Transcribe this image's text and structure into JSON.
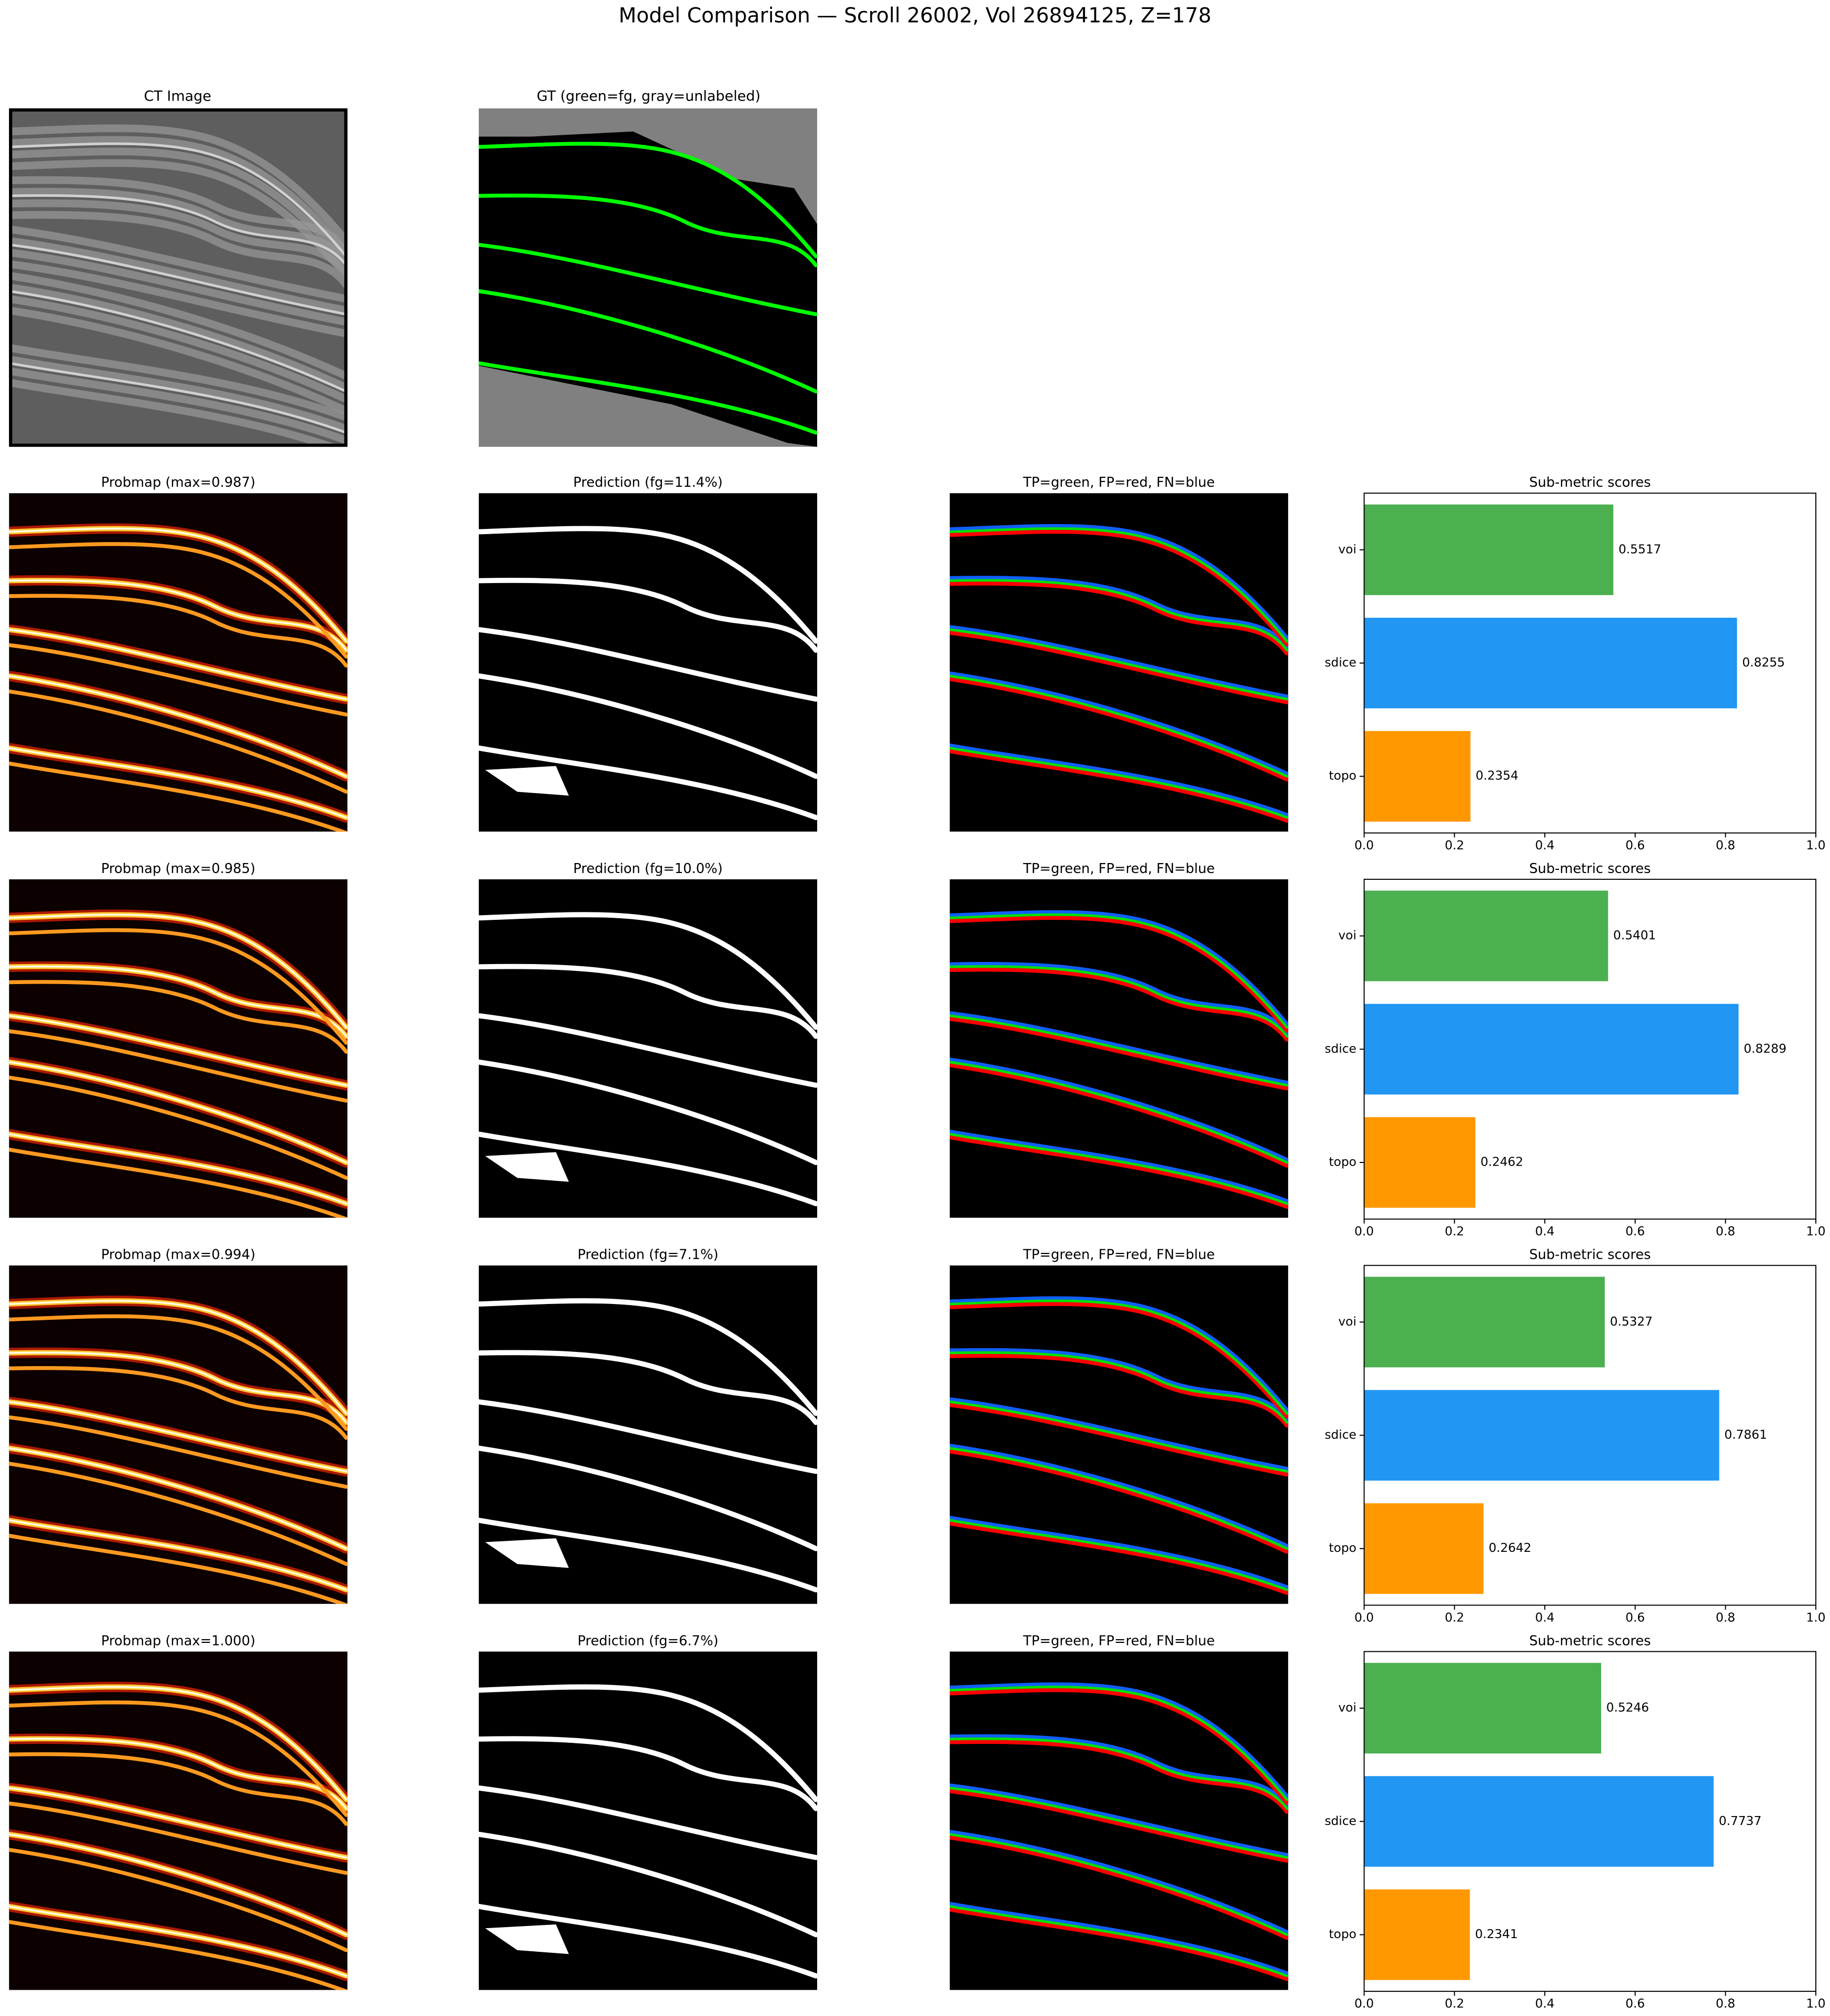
{
  "figure_title": "Model Comparison — Scroll 26002, Vol 26894125, Z=178",
  "top_row": {
    "ct": "CT Image",
    "gt": "GT (green=fg, gray=unlabeled)"
  },
  "rows": [
    {
      "probmap": "Probmap (max=0.987)",
      "prediction": "Prediction (fg=11.4%)",
      "overlay": "TP=green, FP=red, FN=blue"
    },
    {
      "probmap": "Probmap (max=0.985)",
      "prediction": "Prediction (fg=10.0%)",
      "overlay": "TP=green, FP=red, FN=blue"
    },
    {
      "probmap": "Probmap (max=0.994)",
      "prediction": "Prediction (fg=7.1%)",
      "overlay": "TP=green, FP=red, FN=blue"
    },
    {
      "probmap": "Probmap (max=1.000)",
      "prediction": "Prediction (fg=6.7%)",
      "overlay": "TP=green, FP=red, FN=blue"
    }
  ],
  "chart_data": [
    {
      "type": "barh",
      "title": "Sub-metric scores",
      "categories": [
        "voi",
        "sdice",
        "topo"
      ],
      "values": [
        0.5517,
        0.8255,
        0.2354
      ],
      "colors": [
        "#4caf50",
        "#2196f3",
        "#ff9800"
      ],
      "xlim": [
        0,
        1
      ],
      "xticks": [
        {
          "value": 0,
          "label": "0.0"
        },
        0.2,
        0.4,
        0.6,
        0.8,
        {
          "value": 1,
          "label": "1.0"
        }
      ]
    },
    {
      "type": "barh",
      "title": "Sub-metric scores",
      "categories": [
        "voi",
        "sdice",
        "topo"
      ],
      "values": [
        0.5401,
        0.8289,
        0.2462
      ],
      "colors": [
        "#4caf50",
        "#2196f3",
        "#ff9800"
      ],
      "xlim": [
        0,
        1
      ],
      "xticks": [
        {
          "value": 0,
          "label": "0.0"
        },
        0.2,
        0.4,
        0.6,
        0.8,
        {
          "value": 1,
          "label": "1.0"
        }
      ]
    },
    {
      "type": "barh",
      "title": "Sub-metric scores",
      "categories": [
        "voi",
        "sdice",
        "topo"
      ],
      "values": [
        0.5327,
        0.7861,
        0.2642
      ],
      "colors": [
        "#4caf50",
        "#2196f3",
        "#ff9800"
      ],
      "xlim": [
        0,
        1
      ],
      "xticks": [
        {
          "value": 0,
          "label": "0.0"
        },
        0.2,
        0.4,
        0.6,
        0.8,
        {
          "value": 1,
          "label": "1.0"
        }
      ]
    },
    {
      "type": "barh",
      "title": "Sub-metric scores",
      "categories": [
        "voi",
        "sdice",
        "topo"
      ],
      "values": [
        0.5246,
        0.7737,
        0.2341
      ],
      "colors": [
        "#4caf50",
        "#2196f3",
        "#ff9800"
      ],
      "xlim": [
        0,
        1
      ],
      "xticks": [
        {
          "value": 0,
          "label": "0.0"
        },
        0.2,
        0.4,
        0.6,
        0.8,
        {
          "value": 1,
          "label": "1.0"
        }
      ]
    }
  ]
}
